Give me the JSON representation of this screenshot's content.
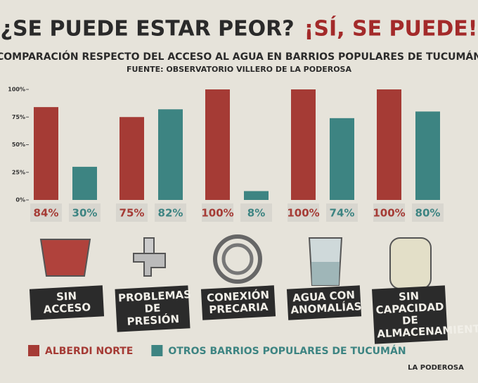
{
  "chart_data": {
    "type": "bar",
    "title": "¿SE PUEDE ESTAR PEOR?",
    "title_highlight": "¡SÍ, SE PUEDE!",
    "subtitle": "COMPARACIÓN RESPECTO DEL ACCESO AL AGUA EN BARRIOS POPULARES DE TUCUMÁN",
    "source": "FUENTE: OBSERVATORIO VILLERO DE LA PODEROSA",
    "logo": "LA PODEROSA",
    "categories": [
      "SIN ACCESO",
      "PROBLEMAS DE PRESIÓN",
      "CONEXIÓN PRECARIA",
      "AGUA CON ANOMALÍAS",
      "SIN CAPACIDAD DE ALMACENAMIENTO"
    ],
    "series": [
      {
        "name": "ALBERDI NORTE",
        "color": "#a53b35",
        "values": [
          84,
          75,
          100,
          100,
          100
        ],
        "value_labels": [
          "84%",
          "75%",
          "100%",
          "100%",
          "100%"
        ]
      },
      {
        "name": "OTROS BARRIOS POPULARES DE TUCUMÁN",
        "color": "#3d8482",
        "values": [
          30,
          82,
          8,
          74,
          80
        ],
        "value_labels": [
          "30%",
          "82%",
          "8%",
          "74%",
          "80%"
        ]
      }
    ],
    "ylim": [
      0,
      100
    ],
    "yticks": [
      {
        "value": 0,
        "label": "0%"
      },
      {
        "value": 25,
        "label": "25%"
      },
      {
        "value": 50,
        "label": "50%"
      },
      {
        "value": 75,
        "label": "75%"
      },
      {
        "value": 100,
        "label": "100%"
      }
    ]
  }
}
